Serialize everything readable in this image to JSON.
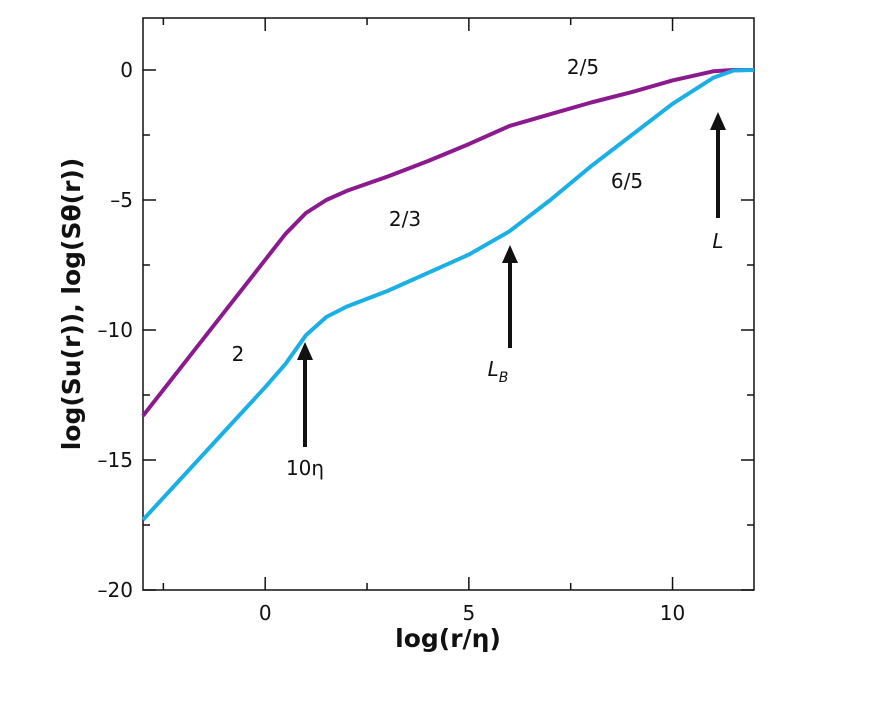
{
  "chart_data": {
    "type": "line",
    "x_label": "log(r/η)",
    "y_label": "log(Su(r)), log(Sθ(r))",
    "x": [
      -3,
      -2,
      -1,
      0,
      0.5,
      1,
      1.5,
      2,
      3,
      4,
      5,
      6,
      7,
      8,
      9,
      10,
      11,
      11.5,
      12
    ],
    "series": [
      {
        "color": "#8b1a8f",
        "values": [
          -13.3,
          -11.3,
          -9.3,
          -7.3,
          -6.3,
          -5.5,
          -5.0,
          -4.65,
          -4.1,
          -3.5,
          -2.85,
          -2.15,
          -1.7,
          -1.25,
          -0.85,
          -0.4,
          -0.05,
          0,
          0
        ]
      },
      {
        "color": "#1ab0e6",
        "values": [
          -17.3,
          -15.6,
          -13.9,
          -12.2,
          -11.3,
          -10.2,
          -9.5,
          -9.1,
          -8.5,
          -7.8,
          -7.1,
          -6.2,
          -5.0,
          -3.7,
          -2.5,
          -1.3,
          -0.3,
          -0.02,
          0
        ]
      }
    ],
    "xlim": [
      -3,
      12
    ],
    "ylim": [
      -20,
      2
    ],
    "xticks": [
      0,
      5,
      10
    ],
    "yticks": [
      {
        "value": -20,
        "label": "–20"
      },
      {
        "value": -15,
        "label": "–15"
      },
      {
        "value": -10,
        "label": "–10"
      },
      {
        "value": -5,
        "label": "–5"
      },
      0
    ],
    "xminorticks": [
      -2.5,
      2.5,
      7.5
    ],
    "yminorticks": [
      -17.5,
      -12.5,
      -7.5,
      -2.5
    ],
    "annotations": [
      {
        "text": "2/5"
      },
      {
        "text": "2/3"
      },
      {
        "text": "6/5"
      },
      {
        "text": "2"
      },
      {
        "text": "10η"
      },
      {
        "text": "L",
        "subscript": "B"
      },
      {
        "text": "L"
      }
    ]
  }
}
